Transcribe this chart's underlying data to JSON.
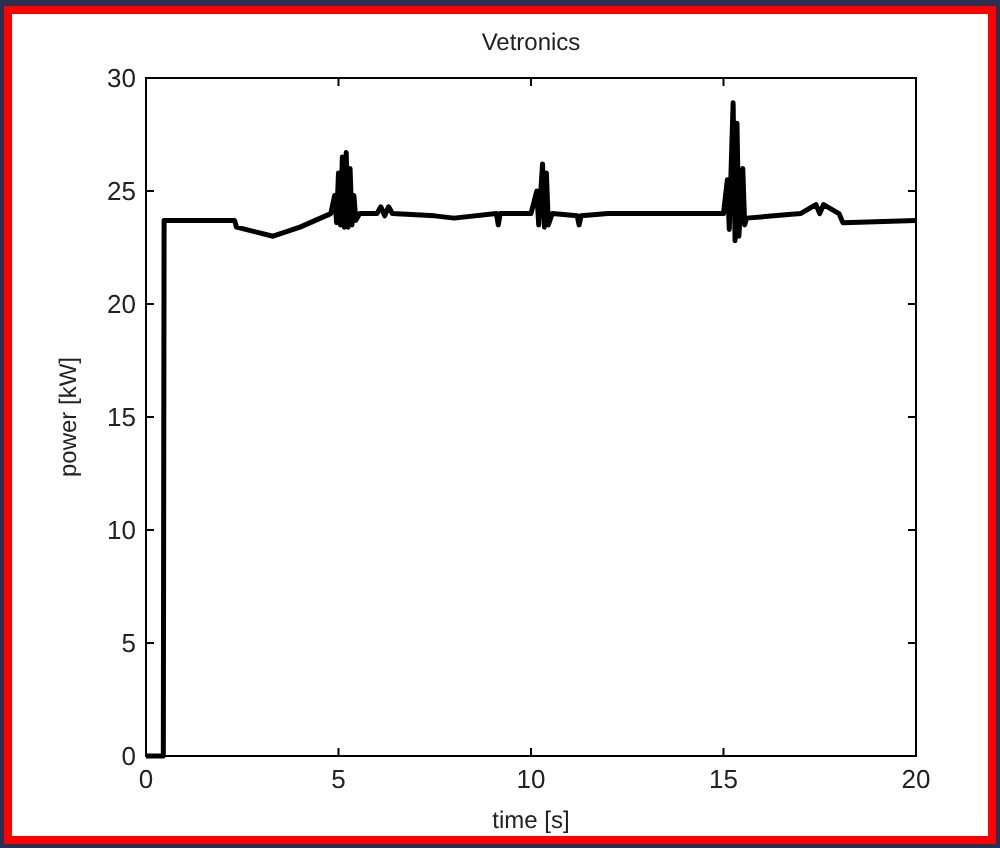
{
  "chart_data": {
    "type": "line",
    "title": "Vetronics",
    "xlabel": "time [s]",
    "ylabel": "power [kW]",
    "xlim": [
      0,
      20
    ],
    "xticks": [
      0,
      5,
      10,
      15,
      20
    ],
    "ylim": [
      0,
      30
    ],
    "yticks": [
      0,
      5,
      10,
      15,
      20,
      25,
      30
    ],
    "grid": false,
    "marker": "none",
    "line_style": "solid",
    "series": [
      {
        "color": "#000000",
        "x": [
          0,
          0.45,
          0.47,
          2.3,
          2.35,
          3.3,
          4.0,
          4.8,
          4.9,
          4.95,
          5.0,
          5.05,
          5.1,
          5.15,
          5.2,
          5.25,
          5.3,
          5.35,
          5.4,
          5.45,
          5.55,
          6.0,
          6.1,
          6.2,
          6.3,
          6.4,
          7.5,
          8.0,
          9.1,
          9.15,
          9.2,
          10.0,
          10.15,
          10.2,
          10.3,
          10.35,
          10.4,
          10.45,
          10.55,
          11.2,
          11.25,
          11.3,
          12.0,
          15.0,
          15.1,
          15.15,
          15.25,
          15.3,
          15.35,
          15.4,
          15.5,
          15.55,
          15.6,
          17.0,
          17.4,
          17.5,
          17.6,
          18.0,
          18.1,
          20.0
        ],
        "values": [
          0,
          0,
          23.7,
          23.7,
          23.4,
          23.0,
          23.4,
          24.0,
          24.8,
          23.6,
          25.8,
          23.5,
          26.5,
          23.4,
          26.7,
          23.4,
          26.0,
          23.5,
          24.8,
          23.7,
          24.0,
          24.0,
          24.3,
          23.9,
          24.3,
          24.0,
          23.9,
          23.8,
          24.0,
          23.5,
          24.0,
          24.0,
          25.0,
          23.5,
          26.2,
          23.4,
          25.8,
          23.5,
          24.0,
          23.9,
          23.5,
          23.9,
          24.0,
          24.0,
          25.5,
          23.3,
          28.9,
          22.8,
          28.0,
          23.0,
          26.0,
          23.5,
          23.8,
          24.0,
          24.4,
          24.0,
          24.4,
          24.0,
          23.6,
          23.7
        ]
      }
    ]
  }
}
